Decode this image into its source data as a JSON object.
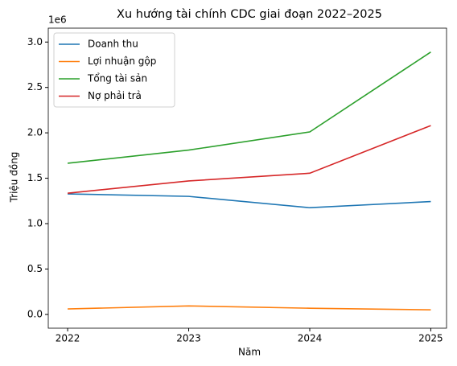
{
  "chart_data": {
    "type": "line",
    "title": "Xu hướng tài chính CDC giai đoạn 2022–2025",
    "x_label": "Năm",
    "y_label": "Triệu đồng",
    "y_offset_label": "1e6",
    "x": [
      2022,
      2023,
      2024,
      2025
    ],
    "series": [
      {
        "name": "Doanh thu",
        "color": "#1f77b4",
        "values": [
          1.327,
          1.3,
          1.175,
          1.243
        ]
      },
      {
        "name": "Lợi nhuận gộp",
        "color": "#ff7f0e",
        "values": [
          0.06,
          0.093,
          0.068,
          0.05
        ]
      },
      {
        "name": "Tổng tài sản",
        "color": "#2ca02c",
        "values": [
          1.665,
          1.81,
          2.01,
          2.89
        ]
      },
      {
        "name": "Nợ phải trả",
        "color": "#d62728",
        "values": [
          1.335,
          1.47,
          1.555,
          2.08
        ]
      }
    ],
    "xlim": [
      2021.84,
      2025.13
    ],
    "xticks": [
      2022,
      2023,
      2024,
      2025
    ],
    "ylim": [
      -0.152,
      3.153
    ],
    "yticks": [
      {
        "value": 0,
        "label": "0.0"
      },
      0.5,
      {
        "value": 1,
        "label": "1.0"
      },
      1.5,
      {
        "value": 2,
        "label": "2.0"
      },
      2.5,
      {
        "value": 3,
        "label": "3.0"
      }
    ],
    "grid": false,
    "legend": "upper left"
  }
}
